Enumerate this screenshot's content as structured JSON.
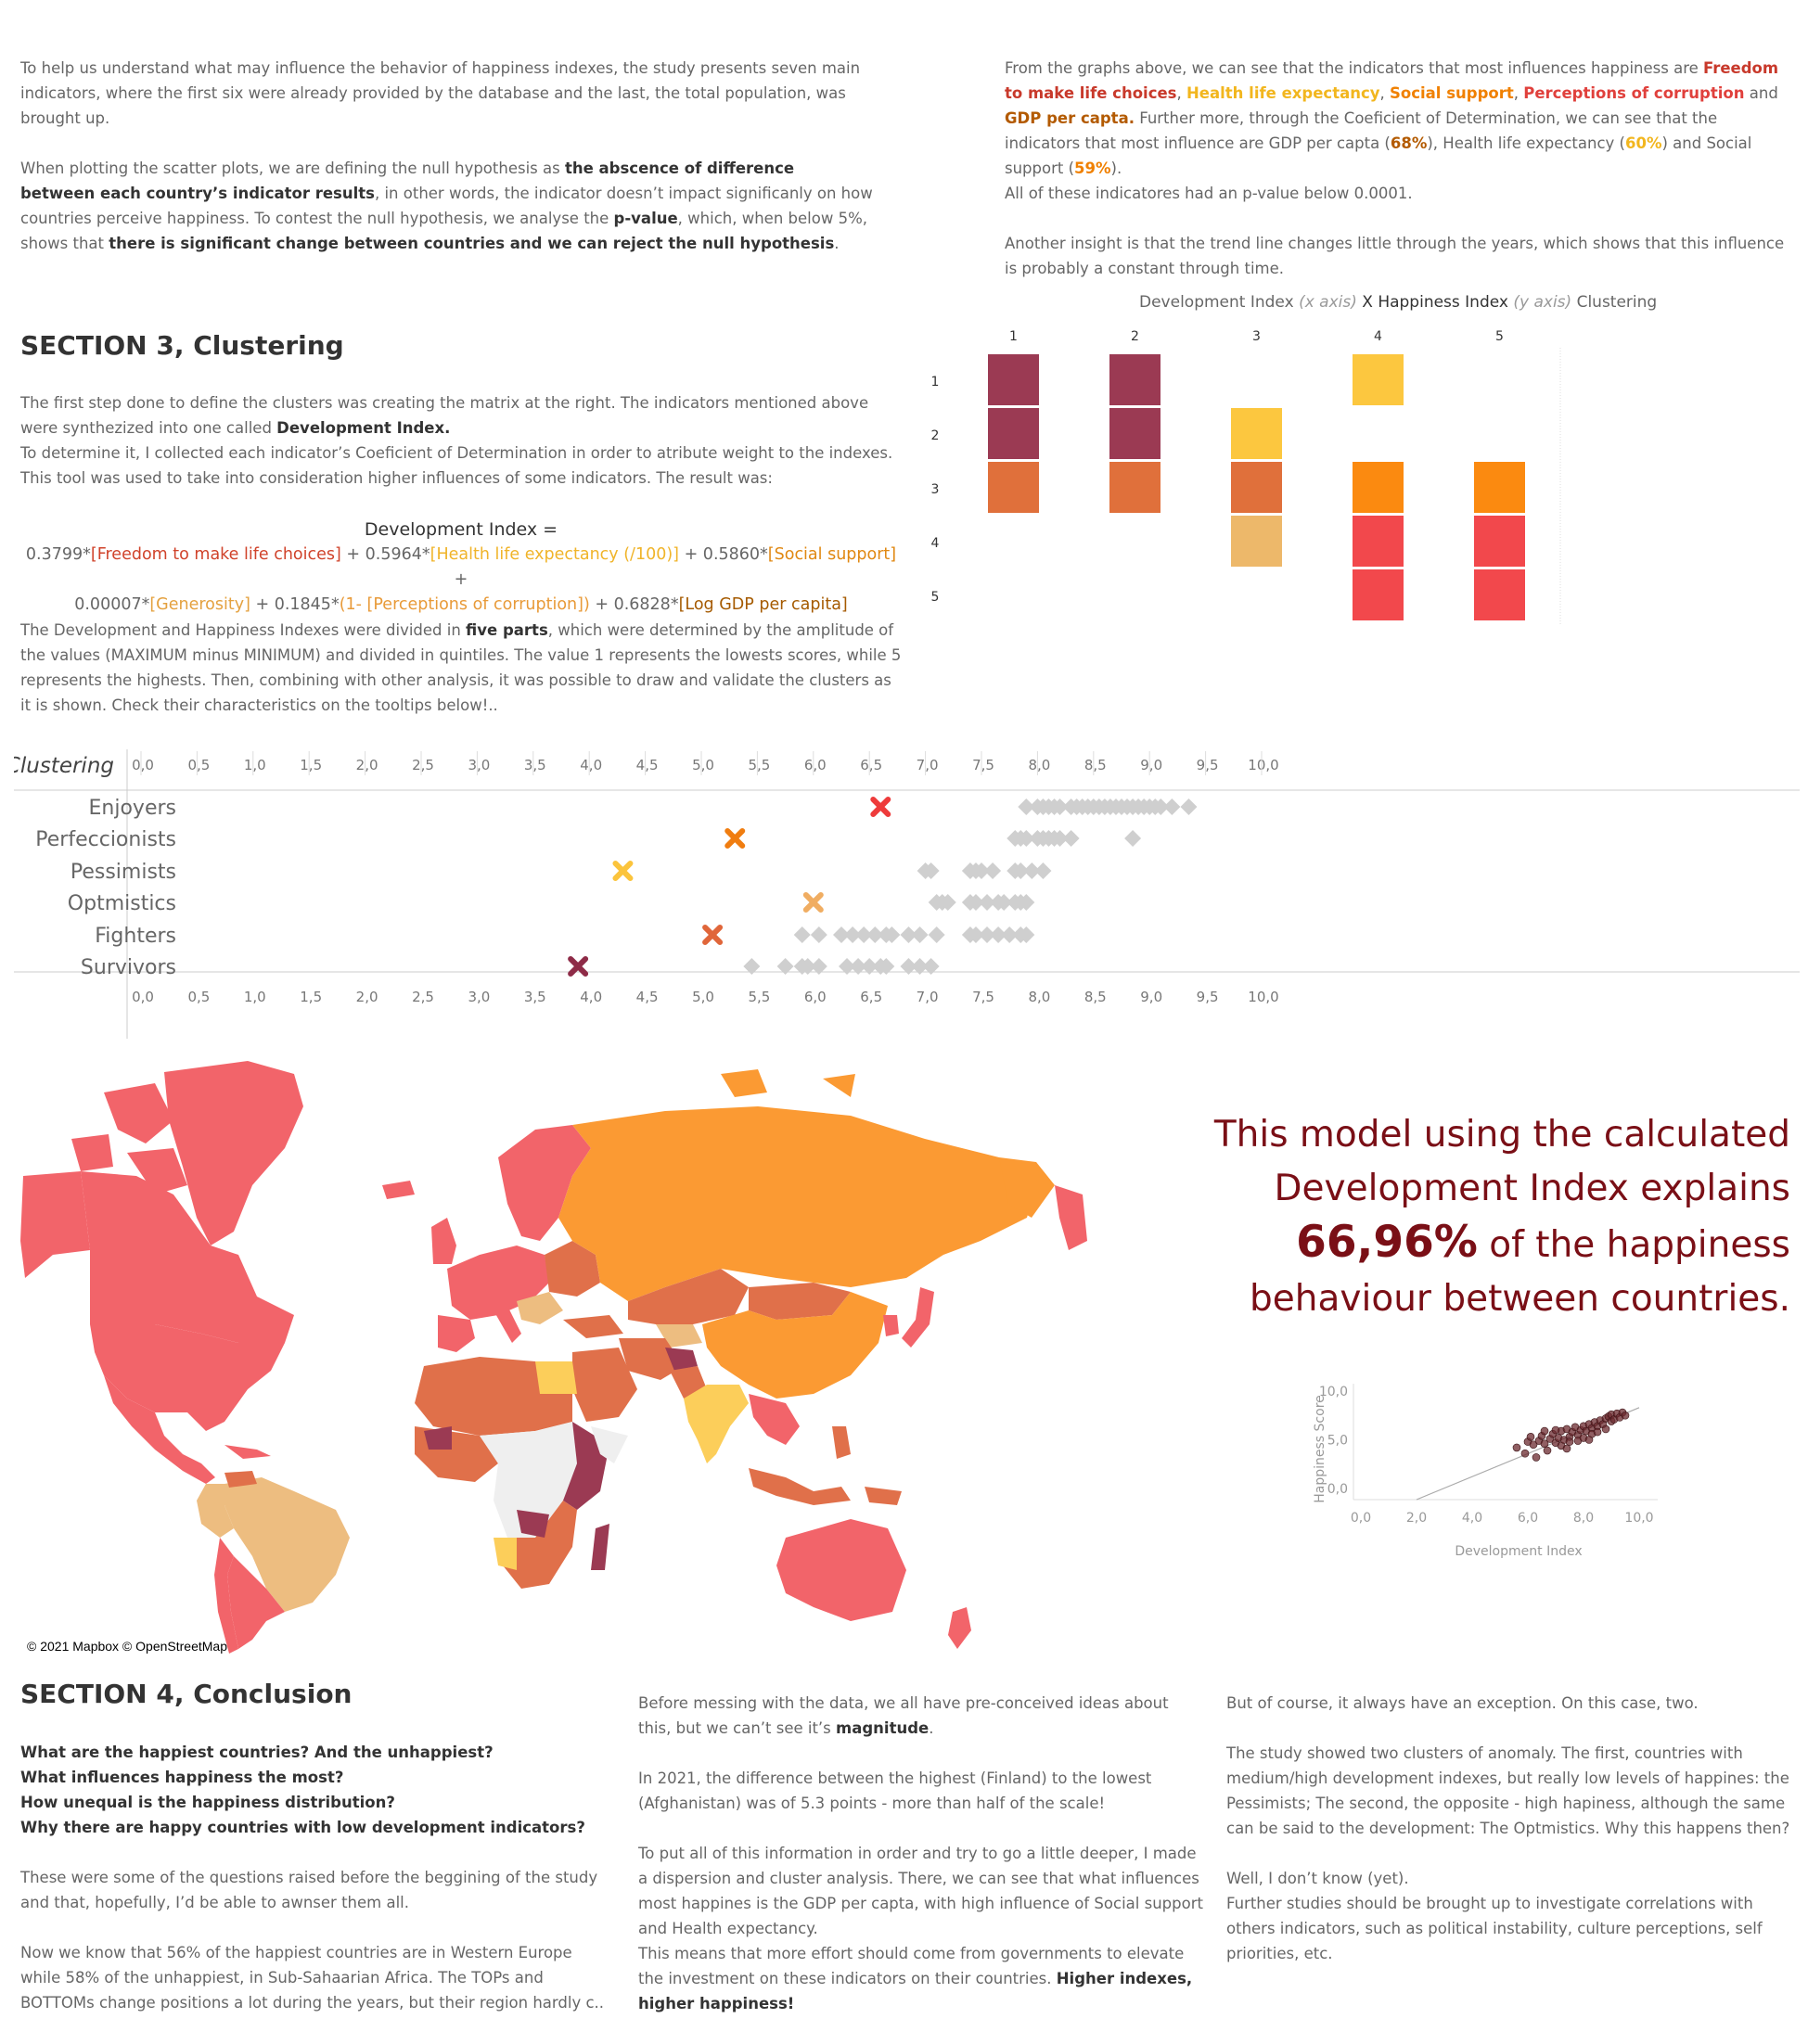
{
  "intro": {
    "left_p1": "To help us understand what may influence the behavior of happiness indexes, the study presents seven main indicators, where the first six were already provided by the database and the last, the total population, was brought up.",
    "left_p2_a": "When plotting the scatter plots, we are defining the null hypothesis as ",
    "left_p2_b": "the abscence of difference between each country’s indicator results",
    "left_p2_c": ", in other words, the indicator doesn’t impact significanly on how countries perceive happiness. To contest the null hypothesis, we analyse the ",
    "left_p2_d": "p-value",
    "left_p2_e": ", which, when below 5%, shows that ",
    "left_p2_f": "there is significant change between countries and we can reject the null hypothesis",
    "left_p2_g": ".",
    "right_p1_a": "From the graphs above, we can see that the indicators that most influences happiness are ",
    "right_freedom": "Freedom to make life choices",
    "sep1": ", ",
    "right_health": "Health life expectancy",
    "sep2": ", ",
    "right_social": "Social support",
    "sep3": ", ",
    "right_corruption": "Perceptions of corruption",
    "and": " and ",
    "right_gdp": "GDP per capta.",
    "right_p1_b": " Further more, through the Coeficient of Determination, we can see that the indicators that most influence are GDP per capta (",
    "pct_gdp": "68%",
    "right_p1_c": "), Health life expectancy (",
    "pct_health": "60%",
    "right_p1_d": ") and Social support (",
    "pct_social": "59%",
    "right_p1_e": ").",
    "right_p1_f": "All  of these indicatores had an p-value below 0.0001.",
    "right_p2": "Another insight is that the trend line changes little through the years, which shows that this influence is probably a constant through time."
  },
  "section3": {
    "title": "SECTION 3, Clustering",
    "p1_a": "The first step done to define the clusters was creating the matrix at the right. The indicators mentioned above were synthezized  into one called ",
    "p1_b": "Development Index.",
    "p1_c": "To determine it, I collected each indicator’s Coeficient of Determination in order to atribute weight to the indexes. This tool was used to take into consideration higher influences of some indicators. The result was:",
    "eq_title": "Development Index =",
    "eq_1": "0.3799*",
    "eq_2": "[Freedom to make life choices]",
    "eq_3": " + 0.5964*",
    "eq_4": "[Health life expectancy (/100)]",
    "eq_5": " + 0.5860*",
    "eq_6": "[Social support]",
    "eq_7": " +",
    "eq_8": "0.00007*",
    "eq_9": "[Generosity]",
    "eq_10": " + 0.1845*",
    "eq_11": "(1- [Perceptions of corruption])",
    "eq_12": " + 0.6828*",
    "eq_13": "[Log GDP per capita]",
    "p2_a": "The Development and Happiness Indexes were divided in ",
    "p2_b": "five parts",
    "p2_c": ", which were determined by the amplitude of the values (MAXIMUM minus MINIMUM) and divided in quintiles. The value 1 represents the lowests scores, while 5 represents the highests. Then, combining with other analysis, it was possible to draw and validate the clusters as it is shown. Check their characteristics on the tooltips below!.."
  },
  "matrix": {
    "title_a": "Development Index ",
    "title_b": "(x axis)",
    "title_c": " X Happiness Index ",
    "title_d": "(y axis)",
    "title_e": " Clustering",
    "col_labels": [
      "1",
      "2",
      "3",
      "4",
      "5"
    ],
    "row_labels": [
      "1",
      "2",
      "3",
      "4",
      "5"
    ],
    "cells": [
      {
        "col": 1,
        "row": 1,
        "color": "#9b3a53"
      },
      {
        "col": 1,
        "row": 2,
        "color": "#9b3a53"
      },
      {
        "col": 1,
        "row": 3,
        "color": "#e0703b"
      },
      {
        "col": 2,
        "row": 1,
        "color": "#9b3a53"
      },
      {
        "col": 2,
        "row": 2,
        "color": "#9b3a53"
      },
      {
        "col": 2,
        "row": 3,
        "color": "#e0703b"
      },
      {
        "col": 3,
        "row": 2,
        "color": "#fcc73f"
      },
      {
        "col": 3,
        "row": 3,
        "color": "#e0703b"
      },
      {
        "col": 3,
        "row": 4,
        "color": "#edb86a"
      },
      {
        "col": 4,
        "row": 1,
        "color": "#fcc73f"
      },
      {
        "col": 4,
        "row": 3,
        "color": "#fb8a10"
      },
      {
        "col": 4,
        "row": 4,
        "color": "#f2484c"
      },
      {
        "col": 4,
        "row": 5,
        "color": "#f2484c"
      },
      {
        "col": 5,
        "row": 3,
        "color": "#fb8a10"
      },
      {
        "col": 5,
        "row": 4,
        "color": "#f2484c"
      },
      {
        "col": 5,
        "row": 5,
        "color": "#f2484c"
      }
    ]
  },
  "chart_data": [
    {
      "type": "scatter",
      "title": "Clustering",
      "xlim": [
        0,
        10
      ],
      "x_ticks": [
        "0,0",
        "0,5",
        "1,0",
        "1,5",
        "2,0",
        "2,5",
        "3,0",
        "3,5",
        "4,0",
        "4,5",
        "5,0",
        "5,5",
        "6,0",
        "6,5",
        "7,0",
        "7,5",
        "8,0",
        "8,5",
        "9,0",
        "9,5",
        "10,0"
      ],
      "categories": [
        "Enjoyers",
        "Perfeccionists",
        "Pessimists",
        "Optmistics",
        "Fighters",
        "Survivors"
      ],
      "marker_x": [
        6.6,
        5.3,
        4.3,
        6.0,
        5.1,
        3.9
      ],
      "marker_colors": [
        "#ee3b3b",
        "#f07d10",
        "#fbc43c",
        "#f0ad62",
        "#e0663a",
        "#8e2b47"
      ],
      "series": [
        {
          "values": [
            [
              7.9,
              8.0,
              8.05,
              8.1,
              8.15,
              8.2,
              8.3,
              8.35,
              8.4,
              8.45,
              8.5,
              8.55,
              8.6,
              8.65,
              8.7,
              8.75,
              8.8,
              8.85,
              8.9,
              8.95,
              9.0,
              9.05,
              9.1,
              9.2,
              9.35
            ]
          ]
        },
        {
          "values": [
            [
              7.8,
              7.85,
              7.9,
              8.0,
              8.05,
              8.1,
              8.15,
              8.2,
              8.3,
              8.85
            ]
          ]
        },
        {
          "values": [
            [
              7.0,
              7.05,
              7.4,
              7.45,
              7.5,
              7.6,
              7.8,
              7.85,
              7.95,
              8.05
            ]
          ]
        },
        {
          "values": [
            [
              7.1,
              7.15,
              7.2,
              7.4,
              7.45,
              7.55,
              7.65,
              7.7,
              7.8,
              7.85,
              7.9
            ]
          ]
        },
        {
          "values": [
            [
              5.9,
              6.05,
              6.25,
              6.35,
              6.45,
              6.55,
              6.65,
              6.7,
              6.85,
              6.95,
              7.1,
              7.4,
              7.45,
              7.55,
              7.65,
              7.75,
              7.85,
              7.9
            ]
          ]
        },
        {
          "values": [
            [
              5.45,
              5.75,
              5.9,
              5.95,
              6.05,
              6.3,
              6.4,
              6.5,
              6.6,
              6.65,
              6.85,
              6.95,
              7.05
            ]
          ]
        }
      ]
    },
    {
      "type": "scatter",
      "xlabel": "Development Index",
      "ylabel": "Happiness Score",
      "x_ticks": [
        "0,0",
        "2,0",
        "4,0",
        "6,0",
        "8,0",
        "10,0"
      ],
      "y_ticks": [
        "10,0",
        "5,0",
        "0,0"
      ],
      "xlim": [
        0,
        10
      ],
      "ylim": [
        0,
        10
      ],
      "trend": [
        [
          2.0,
          0.0
        ],
        [
          10.0,
          8.3
        ]
      ],
      "points": [
        [
          5.6,
          4.2
        ],
        [
          5.9,
          3.6
        ],
        [
          6.0,
          4.8
        ],
        [
          6.2,
          4.5
        ],
        [
          6.3,
          3.2
        ],
        [
          6.4,
          4.9
        ],
        [
          6.5,
          5.4
        ],
        [
          6.6,
          4.6
        ],
        [
          6.7,
          3.9
        ],
        [
          6.8,
          5.1
        ],
        [
          6.9,
          5.6
        ],
        [
          7.0,
          4.7
        ],
        [
          7.1,
          5.2
        ],
        [
          7.2,
          5.9
        ],
        [
          7.2,
          4.4
        ],
        [
          7.3,
          5.0
        ],
        [
          7.4,
          6.1
        ],
        [
          7.5,
          5.3
        ],
        [
          7.5,
          4.8
        ],
        [
          7.6,
          5.8
        ],
        [
          7.7,
          6.3
        ],
        [
          7.8,
          5.5
        ],
        [
          7.8,
          4.9
        ],
        [
          7.9,
          6.0
        ],
        [
          8.0,
          6.4
        ],
        [
          8.0,
          5.2
        ],
        [
          8.1,
          5.9
        ],
        [
          8.2,
          6.6
        ],
        [
          8.3,
          6.2
        ],
        [
          8.3,
          5.6
        ],
        [
          8.4,
          6.8
        ],
        [
          8.5,
          6.4
        ],
        [
          8.5,
          5.8
        ],
        [
          8.6,
          7.0
        ],
        [
          8.7,
          6.6
        ],
        [
          8.8,
          7.2
        ],
        [
          8.8,
          6.1
        ],
        [
          8.9,
          7.4
        ],
        [
          9.0,
          6.9
        ],
        [
          9.0,
          7.6
        ],
        [
          9.1,
          7.1
        ],
        [
          9.2,
          7.7
        ],
        [
          9.3,
          7.3
        ],
        [
          9.4,
          7.8
        ],
        [
          9.5,
          7.5
        ],
        [
          7.0,
          6.0
        ],
        [
          6.6,
          5.9
        ],
        [
          7.4,
          4.1
        ],
        [
          8.2,
          5.0
        ],
        [
          6.1,
          5.3
        ]
      ]
    }
  ],
  "map": {
    "credit": "© 2021 Mapbox © OpenStreetMap"
  },
  "callout": {
    "line1": "This model using the calculated",
    "line2": "Development Index explains",
    "pct": "66,96%",
    "line3_rest": " of the happiness",
    "line4": "behaviour between countries."
  },
  "section4": {
    "title": "SECTION 4, Conclusion",
    "q1": "What are the happiest countries? And the unhappiest?",
    "q2": "What influences happiness the most?",
    "q3": "How unequal is the happiness distribution?",
    "q4": "Why there are happy countries with low development indicators?",
    "c1_p1": "These were some of the questions raised before the beggining of the study and that, hopefully, I’d be able to awnser them all.",
    "c1_p2": "Now we know that 56% of the happiest countries are in Western Europe while 58% of the unhappiest, in Sub-Sahaarian Africa. The TOPs and BOTTOMs change positions a lot during the years, but their region hardly c..",
    "c2_p1_a": "Before messing with the data, we all have pre-conceived ideas about this, but we can’t see it’s ",
    "c2_p1_b": "magnitude",
    "c2_p1_c": ".",
    "c2_p2": "In 2021, the difference between the highest (Finland) to the lowest (Afghanistan) was of 5.3 points - more than half of the scale!",
    "c2_p3": "To put all of this information in order and try to go a little deeper, I made a dispersion and cluster analysis. There, we can see that what influences most happines is the GDP per capta, with high influence of Social support and Health expectancy.",
    "c2_p4_a": "This means that more effort should come from governments to elevate the investment on these indicators on their countries. ",
    "c2_p4_b": "Higher indexes, higher happiness!",
    "c3_p1": "But of course, it always have an exception. On this case, two.",
    "c3_p2": "The study showed two clusters of anomaly. The first, countries with medium/high development indexes, but really low levels of happines: the Pessimists; The second, the opposite - high hapiness, although the same can be said to the development: The Optmistics. Why this happens then?",
    "c3_p3": "Well, I don’t know (yet).",
    "c3_p4": "Further studies should be brought up to investigate correlations with others indicators, such as political instability, culture perceptions, self priorities, etc."
  }
}
